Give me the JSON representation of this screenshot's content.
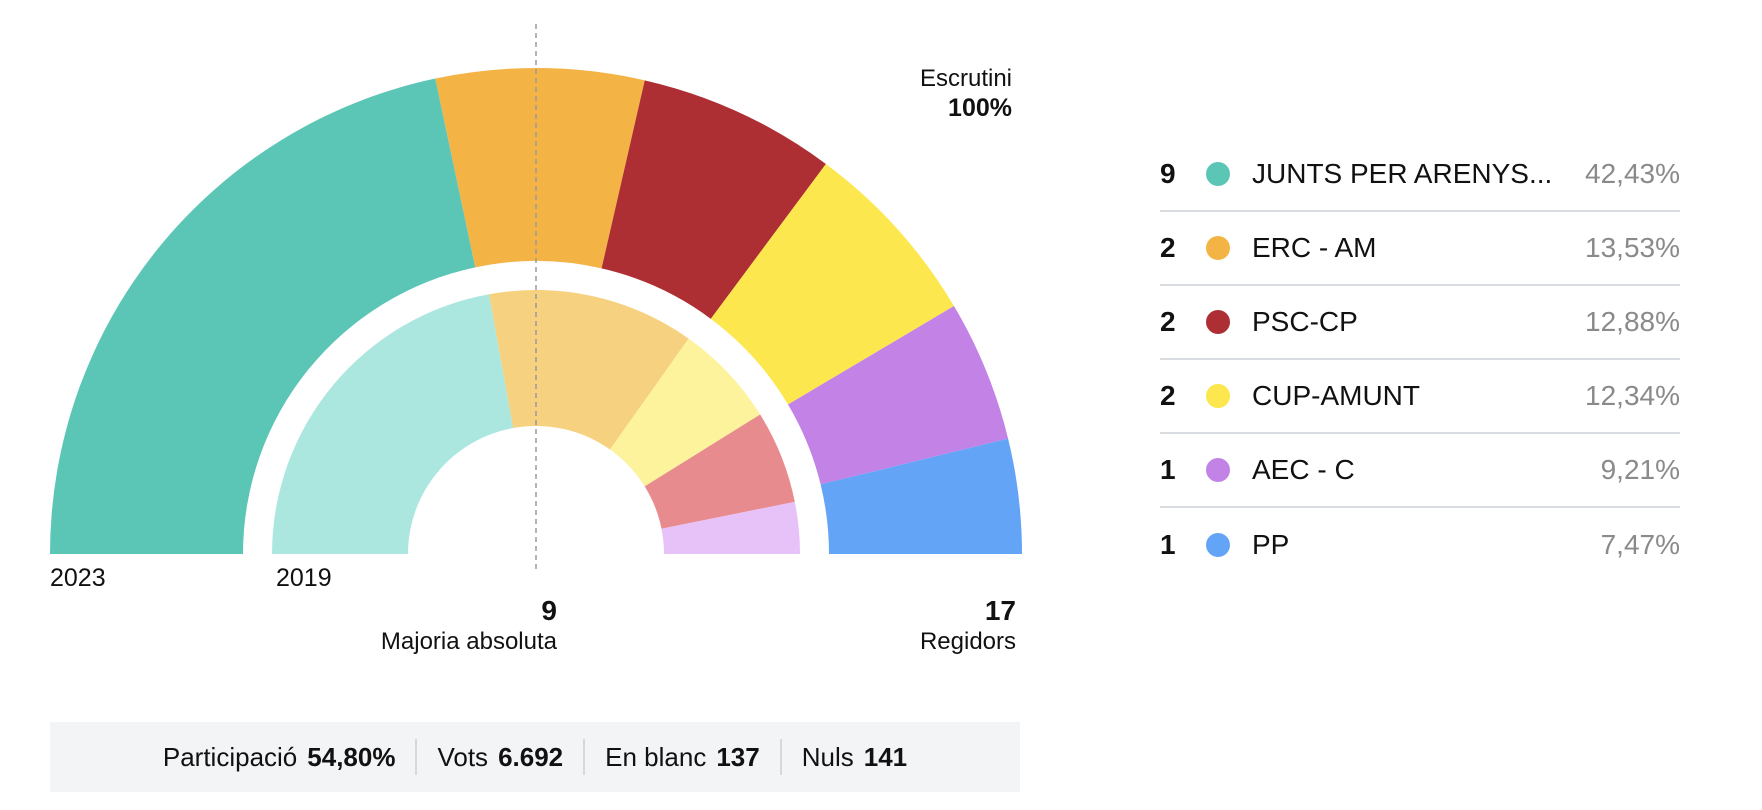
{
  "scrutiny": {
    "label": "Escrutini",
    "value": "100%"
  },
  "years": {
    "current": "2023",
    "previous": "2019"
  },
  "majority": {
    "value": "9",
    "label": "Majoria absoluta"
  },
  "total": {
    "value": "17",
    "label": "Regidors"
  },
  "chart_data": {
    "type": "half-donut",
    "total_seats": 17,
    "majority": 9,
    "series": [
      {
        "name": "2023",
        "values": [
          42.43,
          13.53,
          12.88,
          12.34,
          9.21,
          7.47
        ]
      },
      {
        "name": "2019",
        "values": [
          35,
          20,
          10,
          9,
          5
        ]
      }
    ],
    "colors_2023": [
      "#5cc6b6",
      "#f3b445",
      "#ad2f34",
      "#fce74e",
      "#c282e6",
      "#63a4f7"
    ],
    "colors_2019": [
      "#ace7df",
      "#f6d17f",
      "#fdf39d",
      "#e88b8e",
      "#e6c2f9"
    ]
  },
  "parties": [
    {
      "seats": "9",
      "name": "JUNTS PER ARENYS...",
      "pct": "42,43%",
      "color": "#5cc6b6"
    },
    {
      "seats": "2",
      "name": "ERC - AM",
      "pct": "13,53%",
      "color": "#f3b445"
    },
    {
      "seats": "2",
      "name": "PSC-CP",
      "pct": "12,88%",
      "color": "#ad2f34"
    },
    {
      "seats": "2",
      "name": "CUP-AMUNT",
      "pct": "12,34%",
      "color": "#fce74e"
    },
    {
      "seats": "1",
      "name": "AEC - C",
      "pct": "9,21%",
      "color": "#c282e6"
    },
    {
      "seats": "1",
      "name": "PP",
      "pct": "7,47%",
      "color": "#63a4f7"
    }
  ],
  "stats": [
    {
      "label": "Participació",
      "value": "54,80%"
    },
    {
      "label": "Vots",
      "value": "6.692"
    },
    {
      "label": "En blanc",
      "value": "137"
    },
    {
      "label": "Nuls",
      "value": "141"
    }
  ]
}
